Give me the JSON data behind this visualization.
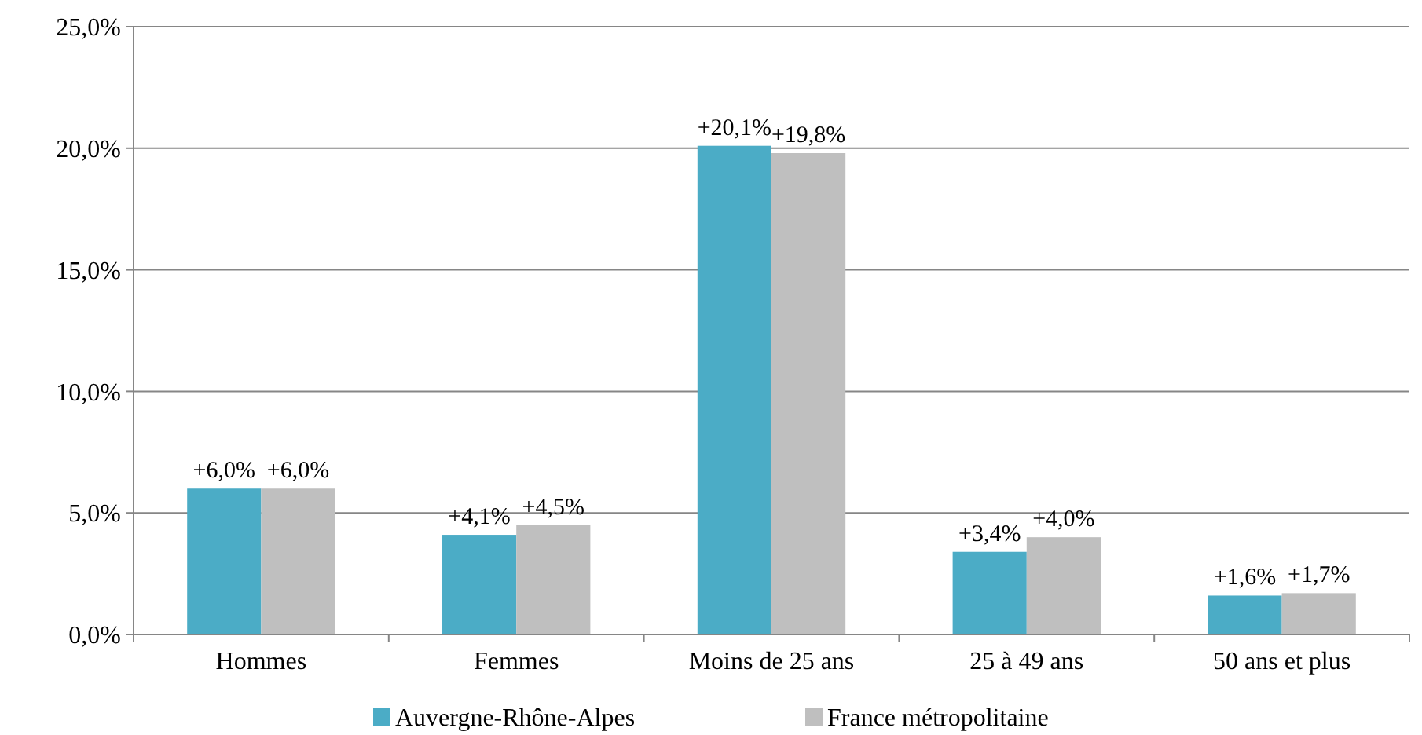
{
  "chart_data": {
    "type": "bar",
    "categories": [
      "Hommes",
      "Femmes",
      "Moins de 25 ans",
      "25 à 49 ans",
      "50 ans et plus"
    ],
    "series": [
      {
        "name": "Auvergne-Rhône-Alpes",
        "color": "#4bacc6",
        "values": [
          6.0,
          4.1,
          20.1,
          3.4,
          1.6
        ],
        "value_labels": [
          "+6,0%",
          "+4,1%",
          "+20,1%",
          "+3,4%",
          "+1,6%"
        ]
      },
      {
        "name": "France métropolitaine",
        "color": "#bfbfbf",
        "values": [
          6.0,
          4.5,
          19.8,
          4.0,
          1.7
        ],
        "value_labels": [
          "+6,0%",
          "+4,5%",
          "+19,8%",
          "+4,0%",
          "+1,7%"
        ]
      }
    ],
    "ylim": [
      0,
      25
    ],
    "yticks": [
      {
        "value": 0,
        "label": "0,0%"
      },
      {
        "value": 5,
        "label": "5,0%"
      },
      {
        "value": 10,
        "label": "10,0%"
      },
      {
        "value": 15,
        "label": "15,0%"
      },
      {
        "value": 20,
        "label": "20,0%"
      },
      {
        "value": 25,
        "label": "25,0%"
      }
    ],
    "grid": "y",
    "legend": "bottom"
  }
}
